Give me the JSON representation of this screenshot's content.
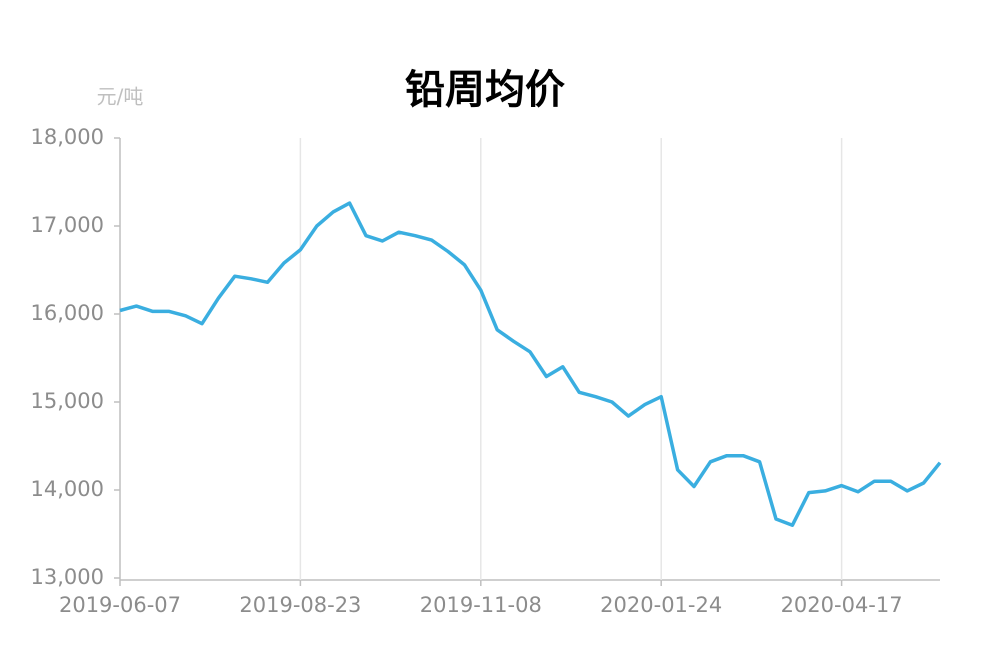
{
  "chart_data": {
    "type": "line",
    "title": "铅周均价",
    "y_label": "元/吨",
    "categories": [
      "2019-06-07",
      null,
      null,
      null,
      null,
      null,
      null,
      null,
      null,
      null,
      null,
      "2019-08-23",
      null,
      null,
      null,
      null,
      null,
      null,
      null,
      null,
      null,
      null,
      "2019-11-08",
      null,
      null,
      null,
      null,
      null,
      null,
      null,
      null,
      null,
      null,
      "2020-01-24",
      null,
      null,
      null,
      null,
      null,
      null,
      null,
      null,
      null,
      null,
      "2020-04-17",
      null,
      null,
      null,
      null,
      null,
      null
    ],
    "series": [
      {
        "name": "铅周均价",
        "color": "#3aaee0",
        "values": [
          16040,
          16090,
          16030,
          16030,
          15980,
          15890,
          16180,
          16430,
          16400,
          16360,
          16580,
          16730,
          17000,
          17160,
          17260,
          16890,
          16830,
          16930,
          16890,
          16840,
          16710,
          16560,
          16270,
          15820,
          15690,
          15570,
          15290,
          15400,
          15110,
          15060,
          15000,
          14840,
          14970,
          15060,
          14230,
          14040,
          14320,
          14390,
          14390,
          14320,
          13670,
          13600,
          13970,
          13990,
          14050,
          13980,
          14100,
          14100,
          13990,
          14080,
          14310
        ]
      }
    ],
    "ylim": [
      13000,
      18000
    ],
    "yticks": [
      {
        "value": 13000,
        "label": "13,000"
      },
      {
        "value": 14000,
        "label": "14,000"
      },
      {
        "value": 15000,
        "label": "15,000"
      },
      {
        "value": 16000,
        "label": "16,000"
      },
      {
        "value": 17000,
        "label": "17,000"
      },
      {
        "value": 18000,
        "label": "18,000"
      }
    ],
    "grid": "x"
  }
}
